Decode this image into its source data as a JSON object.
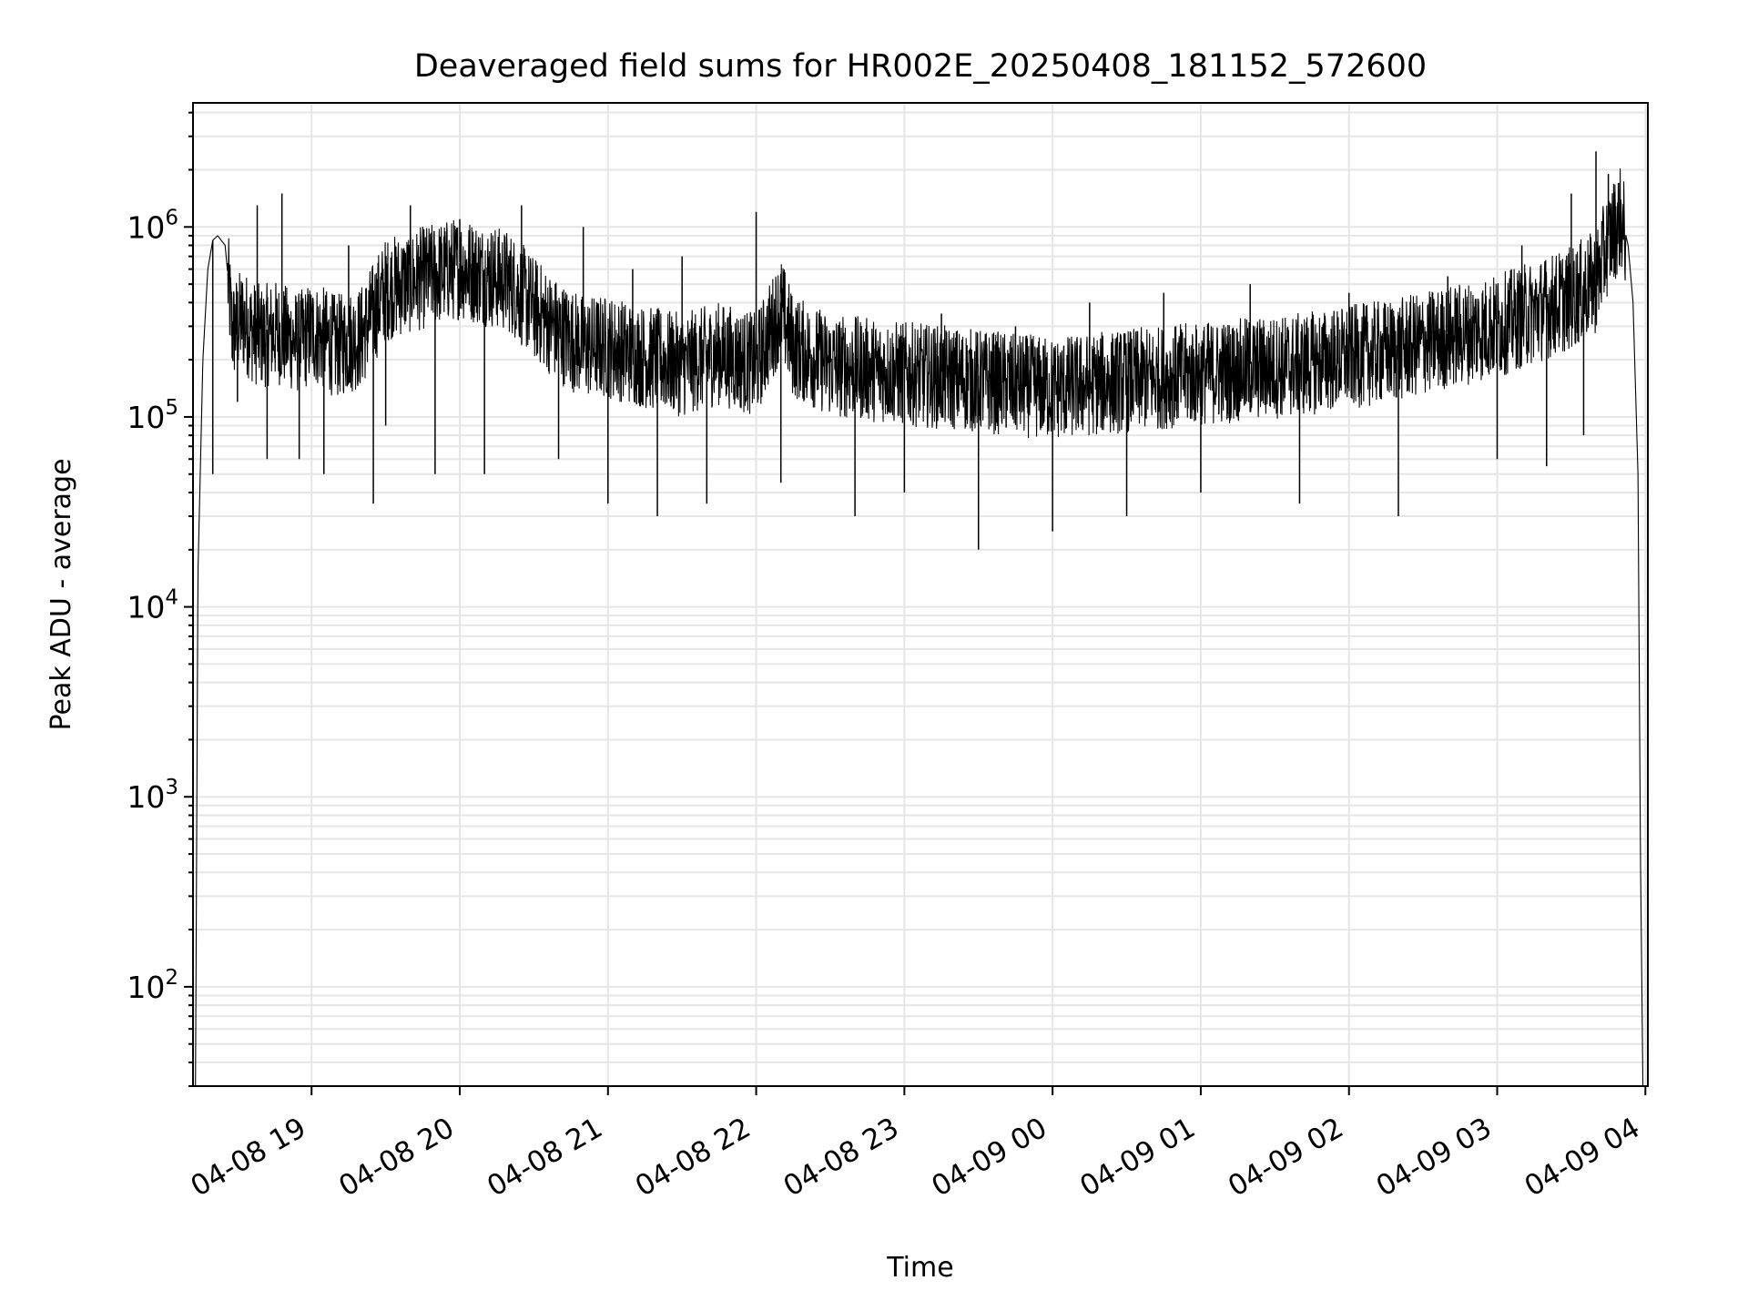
{
  "chart_data": {
    "type": "line",
    "title": "Deaveraged field sums for HR002E_20250408_181152_572600",
    "xlabel": "Time",
    "ylabel": "Peak ADU - average",
    "y_scale": "log",
    "ylim": [
      30,
      4500000
    ],
    "xlim": [
      "2025-04-08 18:12",
      "2025-04-09 04:01"
    ],
    "grid": true,
    "x_ticks": [
      {
        "t": "2025-04-08 19:00",
        "label": "04-08 19"
      },
      {
        "t": "2025-04-08 20:00",
        "label": "04-08 20"
      },
      {
        "t": "2025-04-08 21:00",
        "label": "04-08 21"
      },
      {
        "t": "2025-04-08 22:00",
        "label": "04-08 22"
      },
      {
        "t": "2025-04-08 23:00",
        "label": "04-08 23"
      },
      {
        "t": "2025-04-09 00:00",
        "label": "04-09 00"
      },
      {
        "t": "2025-04-09 01:00",
        "label": "04-09 01"
      },
      {
        "t": "2025-04-09 02:00",
        "label": "04-09 02"
      },
      {
        "t": "2025-04-09 03:00",
        "label": "04-09 03"
      },
      {
        "t": "2025-04-09 04:00",
        "label": "04-09 04"
      }
    ],
    "y_ticks": [
      {
        "value": 100,
        "base": "10",
        "exp": "2"
      },
      {
        "value": 1000,
        "base": "10",
        "exp": "3"
      },
      {
        "value": 10000,
        "base": "10",
        "exp": "4"
      },
      {
        "value": 100000,
        "base": "10",
        "exp": "5"
      },
      {
        "value": 1000000,
        "base": "10",
        "exp": "6"
      }
    ],
    "line_color": "#000000",
    "grid_color": "#e6e6e6",
    "series": [
      {
        "x": [
          "2025-04-08 18:13",
          "2025-04-08 18:14",
          "2025-04-08 18:16",
          "2025-04-08 18:18",
          "2025-04-08 18:20",
          "2025-04-08 18:22",
          "2025-04-08 18:25",
          "2025-04-08 18:28",
          "2025-04-08 18:32",
          "2025-04-08 18:36",
          "2025-04-08 18:40",
          "2025-04-08 18:45",
          "2025-04-08 18:50",
          "2025-04-08 18:55",
          "2025-04-08 19:00",
          "2025-04-08 19:10",
          "2025-04-08 19:20",
          "2025-04-08 19:30",
          "2025-04-08 19:40",
          "2025-04-08 19:50",
          "2025-04-08 20:00",
          "2025-04-08 20:10",
          "2025-04-08 20:20",
          "2025-04-08 20:30",
          "2025-04-08 20:40",
          "2025-04-08 20:50",
          "2025-04-08 21:00",
          "2025-04-08 21:15",
          "2025-04-08 21:30",
          "2025-04-08 21:45",
          "2025-04-08 22:00",
          "2025-04-08 22:10",
          "2025-04-08 22:15",
          "2025-04-08 22:30",
          "2025-04-08 22:45",
          "2025-04-08 23:00",
          "2025-04-08 23:20",
          "2025-04-08 23:40",
          "2025-04-09 00:00",
          "2025-04-09 00:20",
          "2025-04-09 00:40",
          "2025-04-09 01:00",
          "2025-04-09 01:20",
          "2025-04-09 01:40",
          "2025-04-09 02:00",
          "2025-04-09 02:20",
          "2025-04-09 02:40",
          "2025-04-09 03:00",
          "2025-04-09 03:15",
          "2025-04-09 03:30",
          "2025-04-09 03:40",
          "2025-04-09 03:45",
          "2025-04-09 03:50",
          "2025-04-09 03:53",
          "2025-04-09 03:55",
          "2025-04-09 03:57",
          "2025-04-09 03:58",
          "2025-04-09 03:59"
        ],
        "values": [
          30,
          15000,
          200000,
          600000,
          850000,
          900000,
          800000,
          300000,
          350000,
          300000,
          280000,
          300000,
          280000,
          260000,
          300000,
          250000,
          280000,
          500000,
          550000,
          600000,
          650000,
          600000,
          550000,
          400000,
          300000,
          250000,
          250000,
          220000,
          200000,
          230000,
          200000,
          400000,
          250000,
          200000,
          190000,
          180000,
          170000,
          160000,
          150000,
          160000,
          170000,
          180000,
          190000,
          200000,
          220000,
          240000,
          280000,
          320000,
          380000,
          450000,
          550000,
          900000,
          1200000,
          800000,
          400000,
          50000,
          500,
          30
        ]
      }
    ],
    "spikes": {
      "times": [
        "2025-04-08 18:20",
        "2025-04-08 18:30",
        "2025-04-08 18:38",
        "2025-04-08 18:42",
        "2025-04-08 18:48",
        "2025-04-08 18:55",
        "2025-04-08 19:05",
        "2025-04-08 19:15",
        "2025-04-08 19:25",
        "2025-04-08 19:30",
        "2025-04-08 19:40",
        "2025-04-08 19:50",
        "2025-04-08 20:00",
        "2025-04-08 20:10",
        "2025-04-08 20:25",
        "2025-04-08 20:40",
        "2025-04-08 20:50",
        "2025-04-08 21:00",
        "2025-04-08 21:10",
        "2025-04-08 21:20",
        "2025-04-08 21:30",
        "2025-04-08 21:40",
        "2025-04-08 22:00",
        "2025-04-08 22:10",
        "2025-04-08 22:25",
        "2025-04-08 22:40",
        "2025-04-08 23:00",
        "2025-04-08 23:15",
        "2025-04-08 23:30",
        "2025-04-08 23:45",
        "2025-04-09 00:00",
        "2025-04-09 00:15",
        "2025-04-09 00:30",
        "2025-04-09 00:45",
        "2025-04-09 01:00",
        "2025-04-09 01:20",
        "2025-04-09 01:40",
        "2025-04-09 02:00",
        "2025-04-09 02:20",
        "2025-04-09 02:40",
        "2025-04-09 03:00",
        "2025-04-09 03:10",
        "2025-04-09 03:20",
        "2025-04-09 03:30",
        "2025-04-09 03:35",
        "2025-04-09 03:40",
        "2025-04-09 03:45"
      ],
      "values": [
        50000,
        120000,
        1300000,
        60000,
        1500000,
        60000,
        50000,
        800000,
        35000,
        90000,
        1300000,
        50000,
        1100000,
        50000,
        1300000,
        60000,
        1000000,
        35000,
        600000,
        30000,
        700000,
        35000,
        1200000,
        45000,
        250000,
        30000,
        40000,
        350000,
        20000,
        300000,
        25000,
        400000,
        30000,
        450000,
        40000,
        500000,
        35000,
        450000,
        30000,
        550000,
        60000,
        800000,
        55000,
        1500000,
        80000,
        2500000,
        1900000
      ]
    }
  }
}
